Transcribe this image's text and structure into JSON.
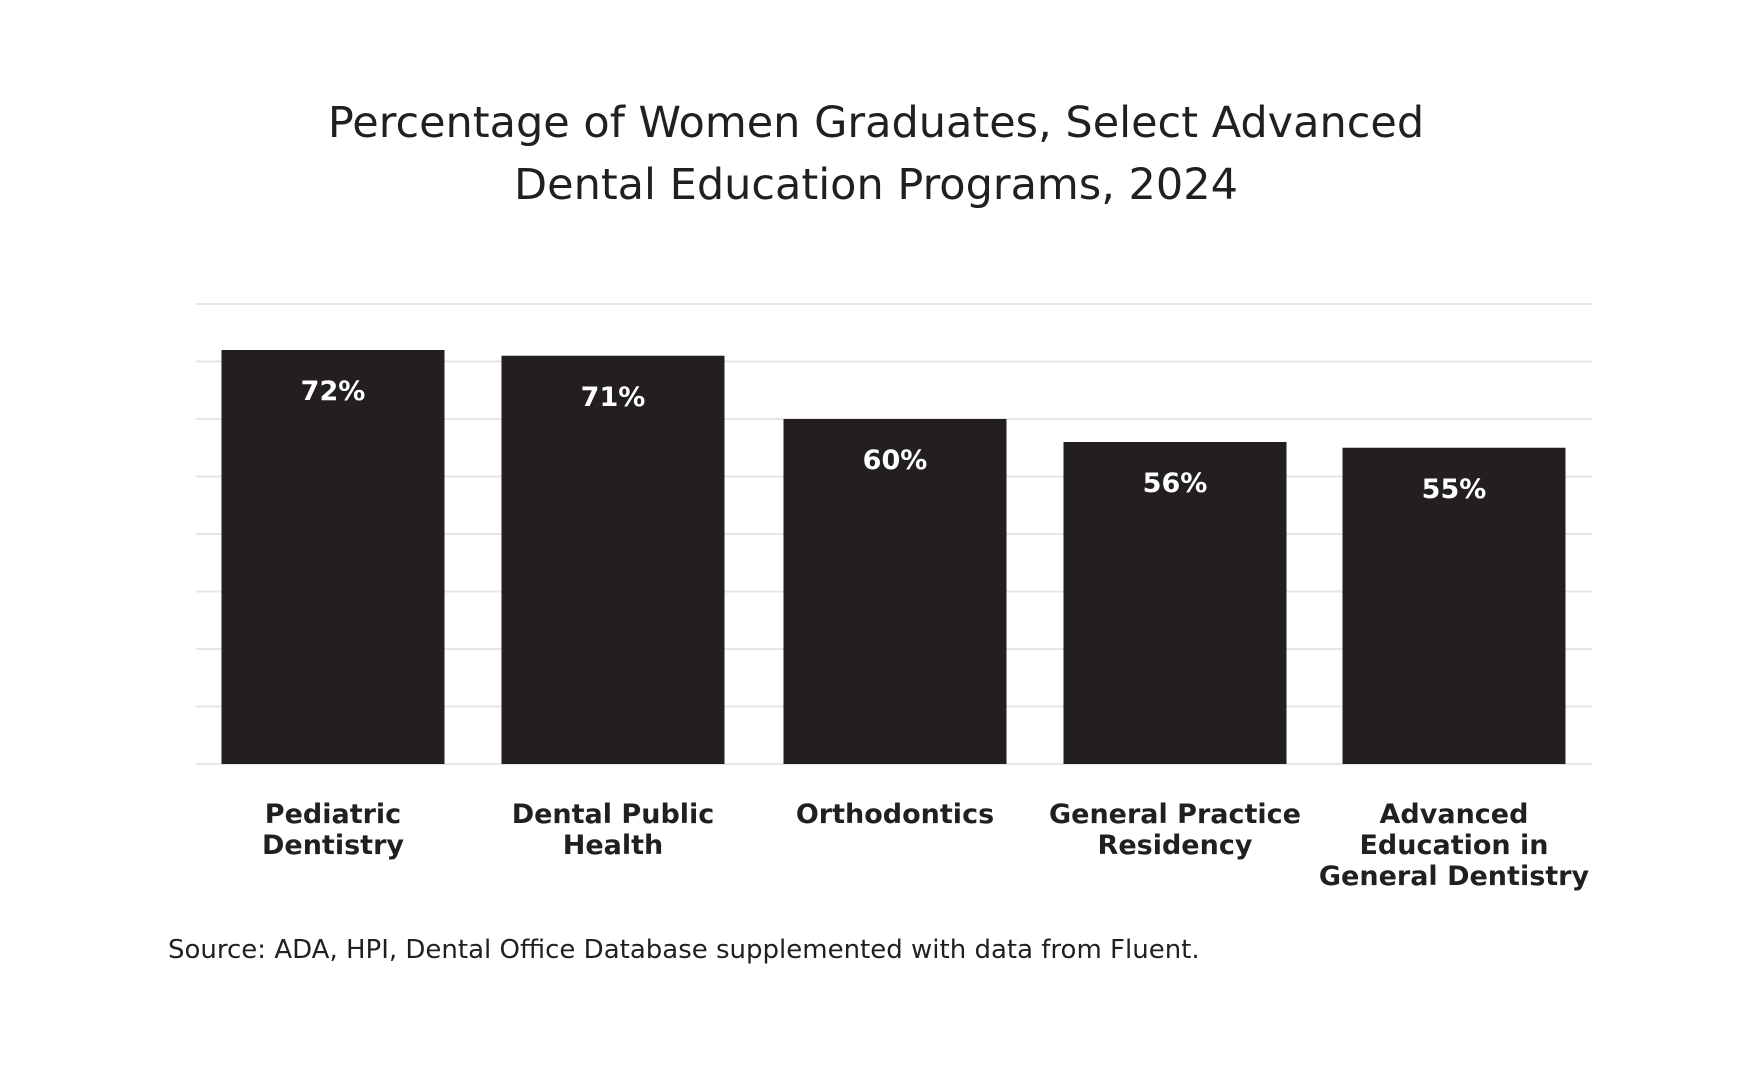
{
  "chart_data": {
    "type": "bar",
    "title_lines": [
      "Percentage of Women Graduates, Select Advanced",
      "Dental Education Programs, 2024"
    ],
    "categories": [
      [
        "Pediatric",
        "Dentistry"
      ],
      [
        "Dental Public",
        "Health"
      ],
      [
        "Orthodontics"
      ],
      [
        "General Practice",
        "Residency"
      ],
      [
        "Advanced",
        "Education in",
        "General Dentistry"
      ]
    ],
    "values": [
      72,
      71,
      60,
      56,
      55
    ],
    "data_labels": [
      "72%",
      "71%",
      "60%",
      "56%",
      "55%"
    ],
    "ylim": [
      0,
      80
    ],
    "grid": true,
    "bar_color": "#231f20",
    "grid_color": "#e6e6e6",
    "source": "Source: ADA, HPI, Dental Office Database supplemented with data from Fluent."
  }
}
